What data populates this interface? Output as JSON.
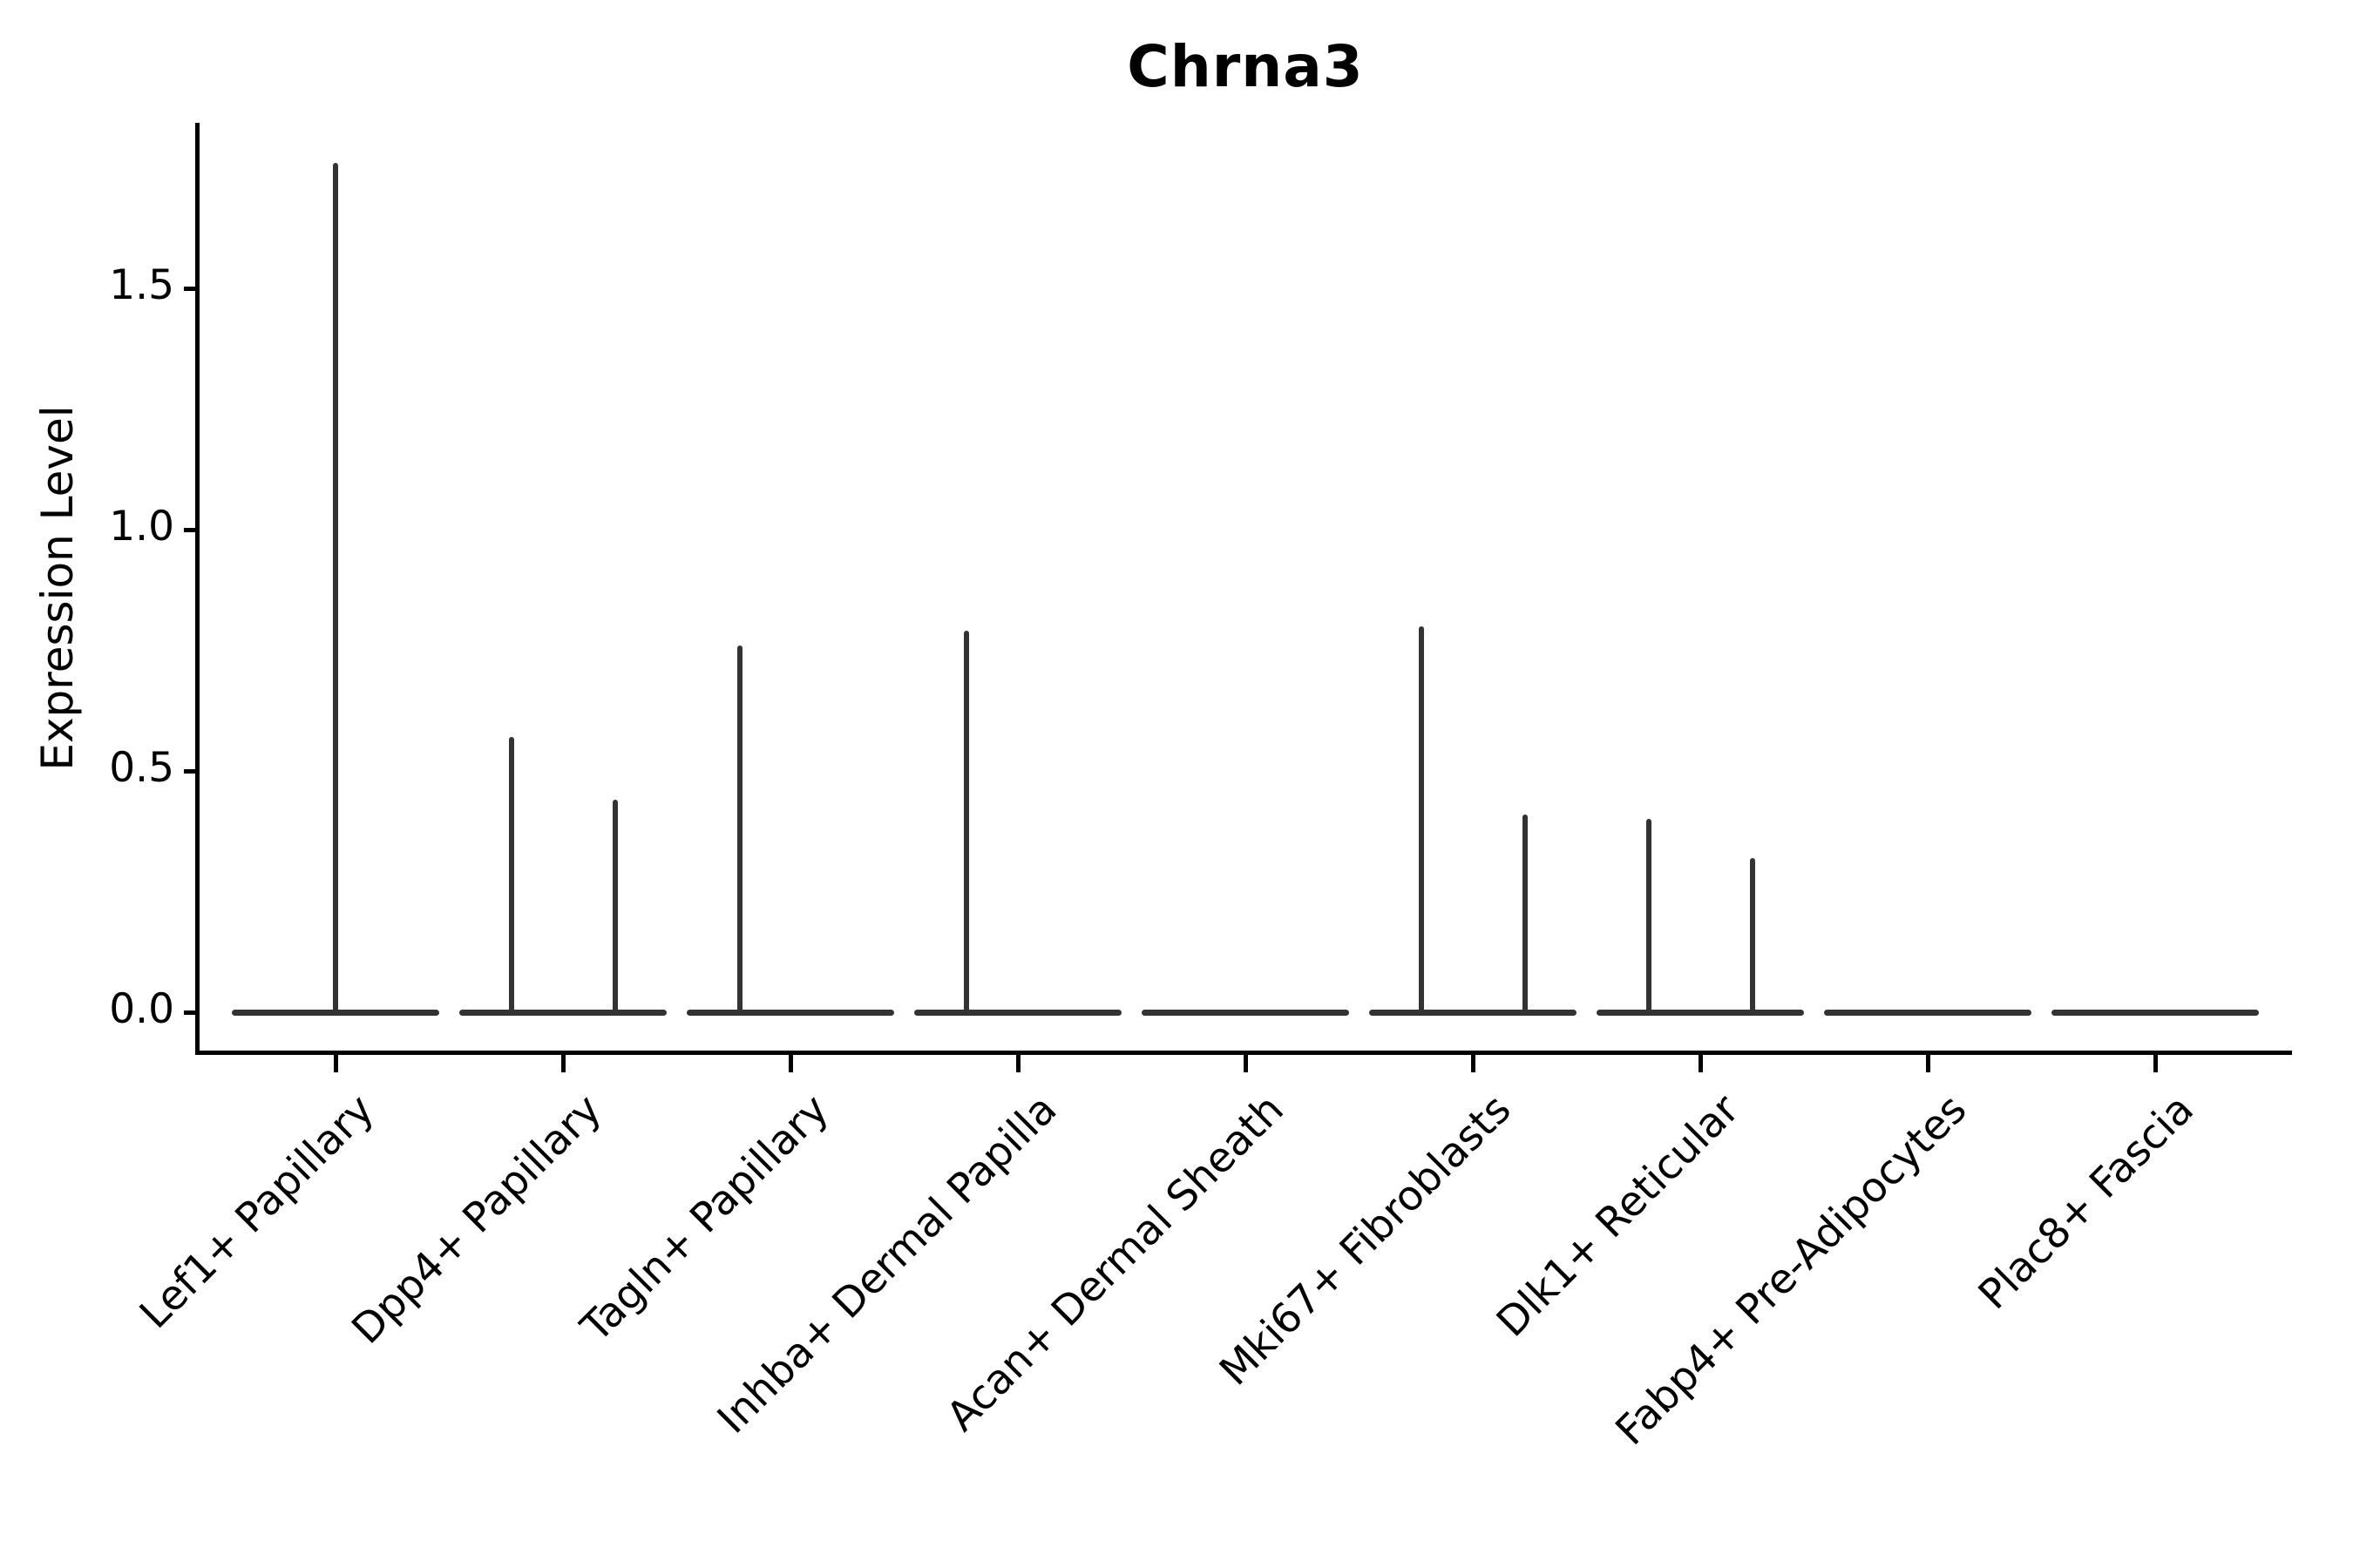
{
  "title": "Chrna3",
  "ylabel": "Expression Level",
  "chart_data": {
    "type": "violin",
    "title": "Chrna3",
    "xlabel": "",
    "ylabel": "Expression Level",
    "ytick_labels": [
      "0.0",
      "0.5",
      "1.0",
      "1.5"
    ],
    "ytick_values": [
      0.0,
      0.5,
      1.0,
      1.5
    ],
    "ylim": [
      -0.083,
      1.843
    ],
    "grid": false,
    "legend": "none",
    "categories": [
      "Lef1+ Papillary",
      "Dpp4+ Papillary",
      "Tagln+ Papillary",
      "Inhba+ Dermal Papilla",
      "Acan+ Dermal Sheath",
      "Mki67+ Fibroblasts",
      "Dlk1+ Reticular",
      "Fabp4+ Pre-Adipocytes",
      "Plac8+ Fascia"
    ],
    "violins": [
      {
        "category": "Lef1+ Papillary",
        "zero_bar": true,
        "spikes": [
          {
            "offset": 0.0,
            "max": 1.76
          }
        ]
      },
      {
        "category": "Dpp4+ Papillary",
        "zero_bar": true,
        "spikes": [
          {
            "offset": -0.226,
            "max": 0.57
          },
          {
            "offset": 0.23,
            "max": 0.44
          }
        ]
      },
      {
        "category": "Tagln+ Papillary",
        "zero_bar": true,
        "spikes": [
          {
            "offset": -0.222,
            "max": 0.76
          }
        ]
      },
      {
        "category": "Inhba+ Dermal Papilla",
        "zero_bar": true,
        "spikes": [
          {
            "offset": -0.226,
            "max": 0.79
          }
        ]
      },
      {
        "category": "Acan+ Dermal Sheath",
        "zero_bar": true,
        "spikes": []
      },
      {
        "category": "Mki67+ Fibroblasts",
        "zero_bar": true,
        "spikes": [
          {
            "offset": -0.226,
            "max": 0.8
          },
          {
            "offset": 0.23,
            "max": 0.41
          }
        ]
      },
      {
        "category": "Dlk1+ Reticular",
        "zero_bar": true,
        "spikes": [
          {
            "offset": -0.226,
            "max": 0.4
          },
          {
            "offset": 0.23,
            "max": 0.32
          }
        ]
      },
      {
        "category": "Fabp4+ Pre-Adipocytes",
        "zero_bar": true,
        "spikes": []
      },
      {
        "category": "Plac8+ Fascia",
        "zero_bar": true,
        "spikes": []
      }
    ],
    "colors": {
      "violin_stroke": "#333333",
      "axis": "#000000",
      "background": "#ffffff"
    }
  }
}
